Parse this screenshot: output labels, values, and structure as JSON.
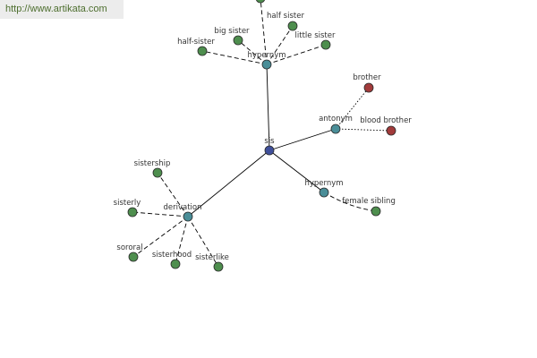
{
  "site": {
    "url": "http://www.artikata.com"
  },
  "colors": {
    "root": "#3f4f9a",
    "relation": "#4a8e98",
    "word": "#4e8e4e",
    "antonym_word": "#a23b3b"
  },
  "graph": {
    "nodes": [
      {
        "id": "sis",
        "label": "sis",
        "kind": "root"
      },
      {
        "id": "hypernym_top",
        "label": "hypernym",
        "kind": "relation"
      },
      {
        "id": "antonym",
        "label": "antonym",
        "kind": "relation"
      },
      {
        "id": "hypernym_right",
        "label": "hypernym",
        "kind": "relation"
      },
      {
        "id": "derivation",
        "label": "derivation",
        "kind": "relation"
      },
      {
        "id": "top_partial",
        "label": "",
        "kind": "word"
      },
      {
        "id": "half_sister_a",
        "label": "half-sister",
        "kind": "word"
      },
      {
        "id": "big_sister",
        "label": "big sister",
        "kind": "word"
      },
      {
        "id": "half_sister_b",
        "label": "half sister",
        "kind": "word"
      },
      {
        "id": "little_sister",
        "label": "little sister",
        "kind": "word"
      },
      {
        "id": "brother",
        "label": "brother",
        "kind": "antonym_word"
      },
      {
        "id": "blood_brother",
        "label": "blood brother",
        "kind": "antonym_word"
      },
      {
        "id": "female_sibling",
        "label": "female sibling",
        "kind": "word"
      },
      {
        "id": "sistership",
        "label": "sistership",
        "kind": "word"
      },
      {
        "id": "sisterly",
        "label": "sisterly",
        "kind": "word"
      },
      {
        "id": "sororal",
        "label": "sororal",
        "kind": "word"
      },
      {
        "id": "sisterhood",
        "label": "sisterhood",
        "kind": "word"
      },
      {
        "id": "sisterlike",
        "label": "sisterlike",
        "kind": "word"
      }
    ],
    "edges": [
      {
        "from": "sis",
        "to": "hypernym_top",
        "style": "solid"
      },
      {
        "from": "sis",
        "to": "antonym",
        "style": "solid"
      },
      {
        "from": "sis",
        "to": "hypernym_right",
        "style": "solid"
      },
      {
        "from": "sis",
        "to": "derivation",
        "style": "solid"
      },
      {
        "from": "hypernym_top",
        "to": "top_partial",
        "style": "dashed"
      },
      {
        "from": "hypernym_top",
        "to": "half_sister_a",
        "style": "dashed"
      },
      {
        "from": "hypernym_top",
        "to": "big_sister",
        "style": "dashed"
      },
      {
        "from": "hypernym_top",
        "to": "half_sister_b",
        "style": "dashed"
      },
      {
        "from": "hypernym_top",
        "to": "little_sister",
        "style": "dashed"
      },
      {
        "from": "antonym",
        "to": "brother",
        "style": "dotted"
      },
      {
        "from": "antonym",
        "to": "blood_brother",
        "style": "dotted"
      },
      {
        "from": "hypernym_right",
        "to": "female_sibling",
        "style": "dashed"
      },
      {
        "from": "derivation",
        "to": "sistership",
        "style": "dashed"
      },
      {
        "from": "derivation",
        "to": "sisterly",
        "style": "dashed"
      },
      {
        "from": "derivation",
        "to": "sororal",
        "style": "dashed"
      },
      {
        "from": "derivation",
        "to": "sisterhood",
        "style": "dashed"
      },
      {
        "from": "derivation",
        "to": "sisterlike",
        "style": "dashed"
      }
    ]
  }
}
